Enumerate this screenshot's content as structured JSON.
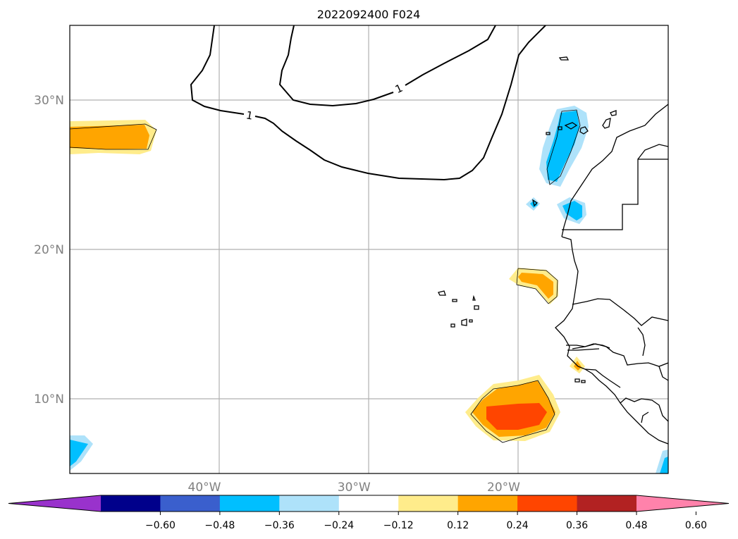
{
  "title": "2022092400 F024",
  "map": {
    "lon_range": [
      -49,
      -9
    ],
    "lat_range": [
      5,
      35
    ],
    "lat_ticks": [
      {
        "value": 10,
        "label": "10°N"
      },
      {
        "value": 20,
        "label": "20°N"
      },
      {
        "value": 30,
        "label": "30°N"
      }
    ],
    "lon_ticks": [
      {
        "value": -40,
        "label": "40°W"
      },
      {
        "value": -30,
        "label": "30°W"
      },
      {
        "value": -20,
        "label": "20°W"
      }
    ],
    "gridlines": true,
    "contour_label": "1"
  },
  "colorbar": {
    "colors": [
      "#9932CC",
      "#00008B",
      "#3A5FCD",
      "#00BFFF",
      "#AEE2FA",
      "#FFFFFF",
      "#FFEC8B",
      "#FFA500",
      "#FF4500",
      "#B22222",
      "#FF82AB"
    ],
    "tick_labels": [
      "−0.60",
      "−0.48",
      "−0.36",
      "−0.24",
      "−0.12",
      "0.12",
      "0.24",
      "0.36",
      "0.48",
      "0.60"
    ],
    "extend": "both"
  }
}
